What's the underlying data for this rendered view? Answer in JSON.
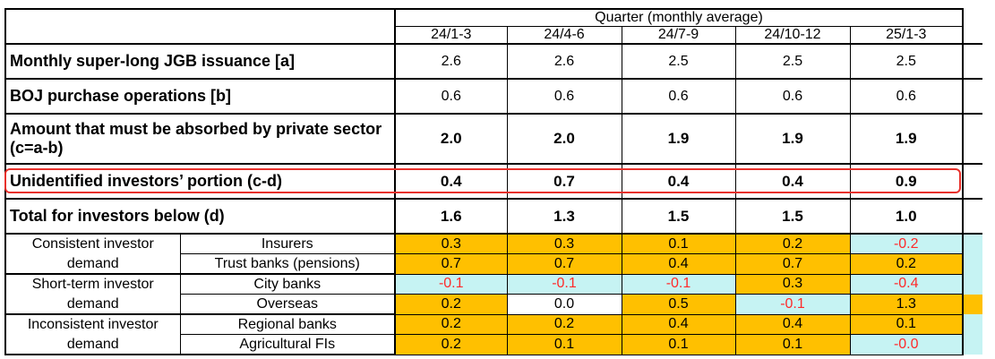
{
  "header": {
    "group_title": "Quarter (monthly average)",
    "quarters": [
      "24/1-3",
      "24/4-6",
      "24/7-9",
      "24/10-12",
      "25/1-3"
    ]
  },
  "rows": [
    {
      "label": "Monthly super-long JGB issuance [a]",
      "values": [
        "2.6",
        "2.6",
        "2.5",
        "2.5",
        "2.5"
      ],
      "bold_values": false
    },
    {
      "label": "BOJ purchase operations [b]",
      "values": [
        "0.6",
        "0.6",
        "0.6",
        "0.6",
        "0.6"
      ],
      "bold_values": false
    },
    {
      "label": "Amount that must be absorbed by private sector (c=a-b)",
      "values": [
        "2.0",
        "2.0",
        "1.9",
        "1.9",
        "1.9"
      ],
      "bold_values": true
    },
    {
      "label": "Unidentified investors’ portion (c-d)",
      "values": [
        "0.4",
        "0.7",
        "0.4",
        "0.4",
        "0.9"
      ],
      "bold_values": true,
      "highlighted": true
    },
    {
      "label": "Total for investors below (d)",
      "values": [
        "1.6",
        "1.3",
        "1.5",
        "1.5",
        "1.0"
      ],
      "bold_values": true
    }
  ],
  "groups": [
    {
      "label": "Consistent investor demand",
      "line1": "Consistent investor",
      "line2": "demand",
      "items": [
        {
          "label": "Insurers",
          "values": [
            "0.3",
            "0.3",
            "0.1",
            "0.2",
            "-0.2"
          ],
          "fills": [
            "orange",
            "orange",
            "orange",
            "orange",
            "cyan"
          ],
          "extra_fill": "cyan"
        },
        {
          "label": "Trust banks (pensions)",
          "values": [
            "0.7",
            "0.7",
            "0.4",
            "0.7",
            "0.2"
          ],
          "fills": [
            "orange",
            "orange",
            "orange",
            "orange",
            "orange"
          ],
          "extra_fill": "cyan"
        }
      ]
    },
    {
      "label": "Short-term investor demand",
      "line1": "Short-term investor",
      "line2": "demand",
      "items": [
        {
          "label": "City banks",
          "values": [
            "-0.1",
            "-0.1",
            "-0.1",
            "0.3",
            "-0.4"
          ],
          "fills": [
            "cyan",
            "cyan",
            "cyan",
            "orange",
            "cyan"
          ],
          "extra_fill": "cyan"
        },
        {
          "label": "Overseas",
          "values": [
            "0.2",
            "0.0",
            "0.5",
            "-0.1",
            "1.3"
          ],
          "fills": [
            "orange",
            "white",
            "orange",
            "cyan",
            "orange"
          ],
          "extra_fill": "orange"
        }
      ]
    },
    {
      "label": "Inconsistent investor demand",
      "line1": "Inconsistent investor",
      "line2": "demand",
      "items": [
        {
          "label": "Regional banks",
          "values": [
            "0.2",
            "0.2",
            "0.4",
            "0.4",
            "0.1"
          ],
          "fills": [
            "orange",
            "orange",
            "orange",
            "orange",
            "orange"
          ],
          "extra_fill": "cyan"
        },
        {
          "label": "Agricultural FIs",
          "values": [
            "0.2",
            "0.1",
            "0.1",
            "0.1",
            "-0.0"
          ],
          "fills": [
            "orange",
            "orange",
            "orange",
            "orange",
            "cyan"
          ],
          "extra_fill": "cyan"
        }
      ]
    }
  ],
  "colors": {
    "orange": "#ffc000",
    "cyan": "#c6f3f3",
    "negative_text": "#ff2a2a",
    "highlight_border": "#e8312c"
  }
}
